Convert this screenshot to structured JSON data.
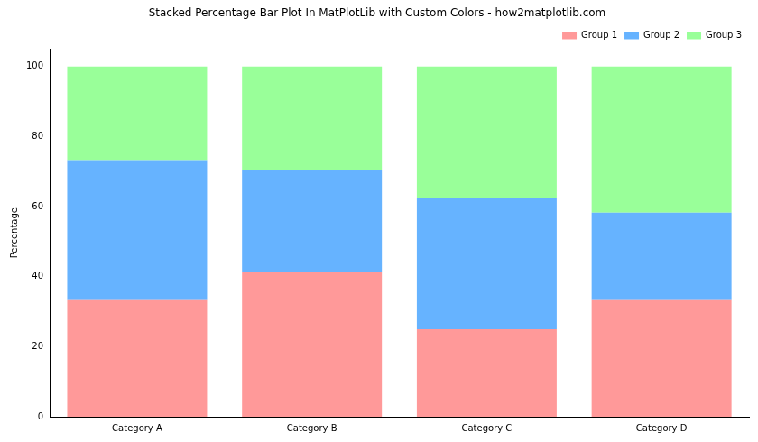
{
  "chart_data": {
    "type": "bar",
    "title": "Stacked Percentage Bar Plot In MatPlotLib with Custom Colors - how2matplotlib.com",
    "y_label": "Percentage",
    "categories": [
      "Category A",
      "Category B",
      "Category C",
      "Category D"
    ],
    "series": [
      {
        "name": "Group 1",
        "color": "#ff9999",
        "values": [
          33.3,
          41.2,
          25.0,
          33.3
        ]
      },
      {
        "name": "Group 2",
        "color": "#66b3ff",
        "values": [
          40.0,
          29.4,
          37.5,
          25.0
        ]
      },
      {
        "name": "Group 3",
        "color": "#99ff99",
        "values": [
          26.7,
          29.4,
          37.5,
          41.7
        ]
      }
    ],
    "stacked": true,
    "ylim": [
      0,
      105
    ],
    "yticks": [
      0,
      20,
      40,
      60,
      80,
      100
    ],
    "grid": false,
    "legend": "upper right"
  }
}
